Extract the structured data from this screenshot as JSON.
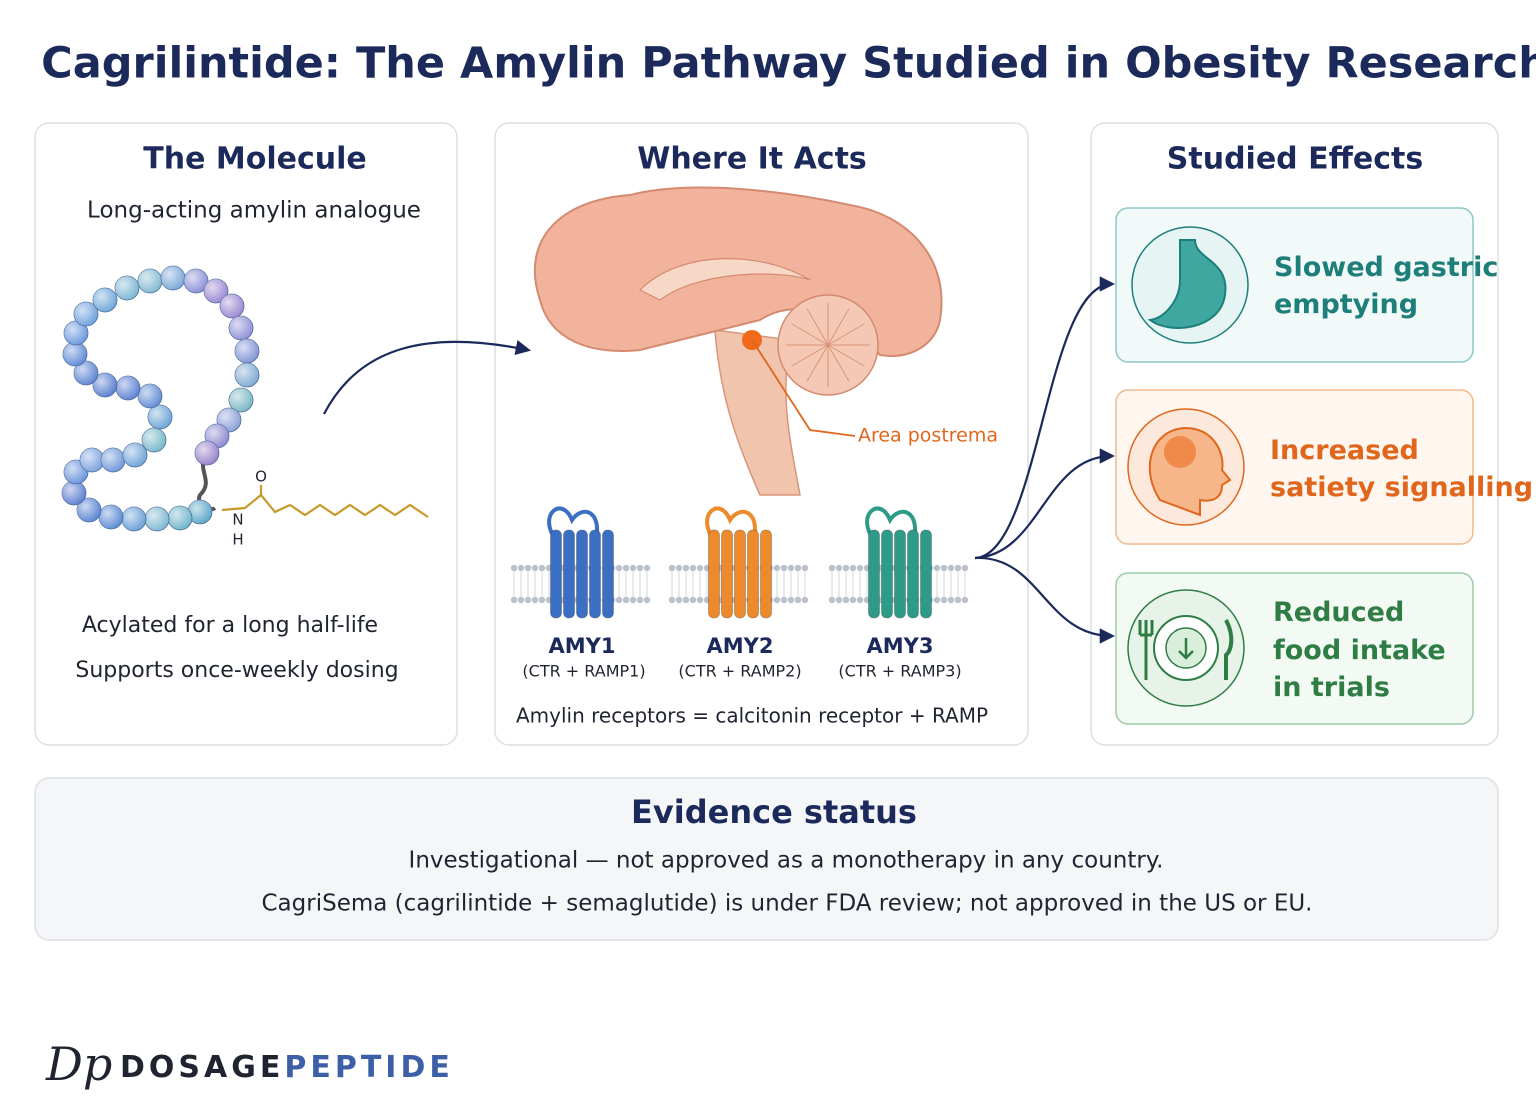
{
  "title": "Cagrilintide: The Amylin Pathway Studied in Obesity Research",
  "panels": {
    "molecule": {
      "title": "The Molecule",
      "subtitle": "Long-acting amylin analogue",
      "atoms": [
        "O",
        "N",
        "H"
      ],
      "notes": [
        "Acylated for a long half-life",
        "Supports once-weekly dosing"
      ]
    },
    "site": {
      "title": "Where It Acts",
      "label": "Area postrema",
      "receptors": [
        {
          "name": "AMY1",
          "composition": "(CTR + RAMP1)"
        },
        {
          "name": "AMY2",
          "composition": "(CTR + RAMP2)"
        },
        {
          "name": "AMY3",
          "composition": "(CTR + RAMP3)"
        }
      ],
      "footnote": "Amylin receptors = calcitonin receptor + RAMP"
    },
    "effects": {
      "title": "Studied Effects",
      "items": [
        {
          "lines": [
            "Slowed gastric",
            "emptying"
          ]
        },
        {
          "lines": [
            "Increased",
            "satiety signalling"
          ]
        },
        {
          "lines": [
            "Reduced",
            "food intake",
            "in trials"
          ]
        }
      ]
    }
  },
  "evidence": {
    "title": "Evidence status",
    "lines": [
      "Investigational — not approved as a monotherapy in any country.",
      "CagriSema (cagrilintide + semaglutide) is under FDA review; not approved in the US or EU."
    ]
  },
  "brand": {
    "logo": "Dp",
    "name_dark": "DOSAGE",
    "name_light": "PEPTIDE"
  }
}
